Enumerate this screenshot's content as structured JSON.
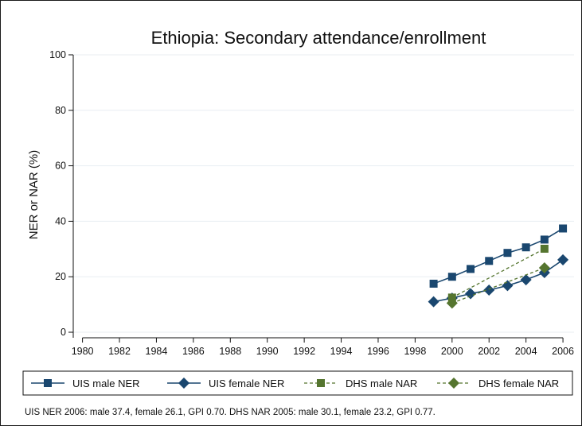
{
  "chart_data": {
    "type": "line",
    "title": "Ethiopia: Secondary attendance/enrollment",
    "xlabel": "",
    "ylabel": "NER or NAR (%)",
    "xlim": [
      1979.5,
      2006.6
    ],
    "ylim": [
      -2,
      102
    ],
    "xticks": [
      1980,
      1982,
      1984,
      1986,
      1988,
      1990,
      1992,
      1994,
      1996,
      1998,
      2000,
      2002,
      2004,
      2006
    ],
    "yticks": [
      0,
      20,
      40,
      60,
      80,
      100
    ],
    "grid": true,
    "legend_position": "bottom",
    "series": [
      {
        "name": "UIS male NER",
        "marker": "square",
        "dash": "solid",
        "x": [
          1999,
          2000,
          2001,
          2002,
          2003,
          2004,
          2005,
          2006
        ],
        "y": [
          17.5,
          20,
          22.8,
          25.7,
          28.6,
          30.6,
          33.4,
          37.4
        ]
      },
      {
        "name": "UIS female NER",
        "marker": "diamond",
        "dash": "solid",
        "x": [
          1999,
          2000,
          2001,
          2002,
          2003,
          2004,
          2005,
          2006
        ],
        "y": [
          11,
          12.3,
          13.9,
          15.2,
          16.8,
          18.9,
          21.5,
          26.1
        ]
      },
      {
        "name": "DHS male NAR",
        "marker": "square",
        "dash": "dashed",
        "x": [
          2000,
          2005
        ],
        "y": [
          12.5,
          30.1
        ]
      },
      {
        "name": "DHS female NAR",
        "marker": "diamond",
        "dash": "dashed",
        "x": [
          2000,
          2005
        ],
        "y": [
          10.5,
          23.2
        ]
      }
    ],
    "note": "UIS NER 2006: male 37.4, female 26.1, GPI 0.70. DHS NAR 2005: male 30.1, female 23.2, GPI 0.77."
  },
  "colors": {
    "uis": "#1a476f",
    "dhs": "#55752f",
    "grid": "#e8eef2",
    "axis": "#111111"
  }
}
